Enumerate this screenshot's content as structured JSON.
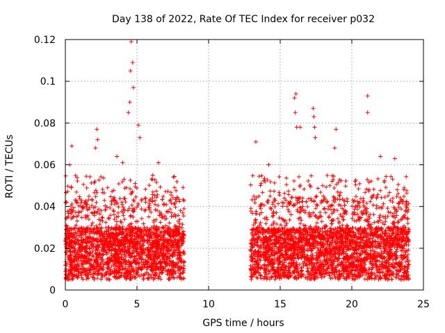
{
  "chart_data": {
    "type": "scatter",
    "title": "Day 138 of 2022, Rate Of TEC Index for receiver p032",
    "xlabel": "GPS time / hours",
    "ylabel": "ROTI / TECUs",
    "xlim": [
      0,
      25
    ],
    "ylim": [
      0,
      0.12
    ],
    "xticks": [
      0,
      5,
      10,
      15,
      20,
      25
    ],
    "yticks": [
      0,
      0.02,
      0.04,
      0.06,
      0.08,
      0.1,
      0.12
    ],
    "xtick_labels": [
      "0",
      "5",
      "10",
      "15",
      "20",
      "25"
    ],
    "ytick_labels": [
      "0",
      "0.02",
      "0.04",
      "0.06",
      "0.08",
      "0.1",
      "0.12"
    ],
    "grid": true,
    "marker": "plus",
    "color": "#ff0000",
    "data_segments": [
      {
        "x_start": 0.0,
        "x_end": 8.3
      },
      {
        "x_start": 12.9,
        "x_end": 24.0
      }
    ],
    "highlight_points": [
      {
        "x": 4.6,
        "y": 0.119
      },
      {
        "x": 4.7,
        "y": 0.109
      },
      {
        "x": 4.55,
        "y": 0.105
      },
      {
        "x": 4.75,
        "y": 0.097
      },
      {
        "x": 4.5,
        "y": 0.09
      },
      {
        "x": 4.4,
        "y": 0.085
      },
      {
        "x": 2.2,
        "y": 0.077
      },
      {
        "x": 2.25,
        "y": 0.072
      },
      {
        "x": 2.1,
        "y": 0.068
      },
      {
        "x": 0.45,
        "y": 0.069
      },
      {
        "x": 0.3,
        "y": 0.06
      },
      {
        "x": 5.1,
        "y": 0.079
      },
      {
        "x": 5.2,
        "y": 0.073
      },
      {
        "x": 3.6,
        "y": 0.064
      },
      {
        "x": 4.0,
        "y": 0.061
      },
      {
        "x": 6.5,
        "y": 0.061
      },
      {
        "x": 13.3,
        "y": 0.071
      },
      {
        "x": 14.2,
        "y": 0.06
      },
      {
        "x": 16.1,
        "y": 0.094
      },
      {
        "x": 16.0,
        "y": 0.092
      },
      {
        "x": 16.05,
        "y": 0.085
      },
      {
        "x": 16.15,
        "y": 0.078
      },
      {
        "x": 16.4,
        "y": 0.078
      },
      {
        "x": 17.3,
        "y": 0.087
      },
      {
        "x": 17.35,
        "y": 0.083
      },
      {
        "x": 17.4,
        "y": 0.078
      },
      {
        "x": 17.45,
        "y": 0.073
      },
      {
        "x": 18.9,
        "y": 0.077
      },
      {
        "x": 18.8,
        "y": 0.068
      },
      {
        "x": 21.1,
        "y": 0.093
      },
      {
        "x": 21.1,
        "y": 0.085
      },
      {
        "x": 22.0,
        "y": 0.064
      },
      {
        "x": 23.0,
        "y": 0.063
      }
    ],
    "baseline_range": [
      0.005,
      0.03
    ]
  }
}
